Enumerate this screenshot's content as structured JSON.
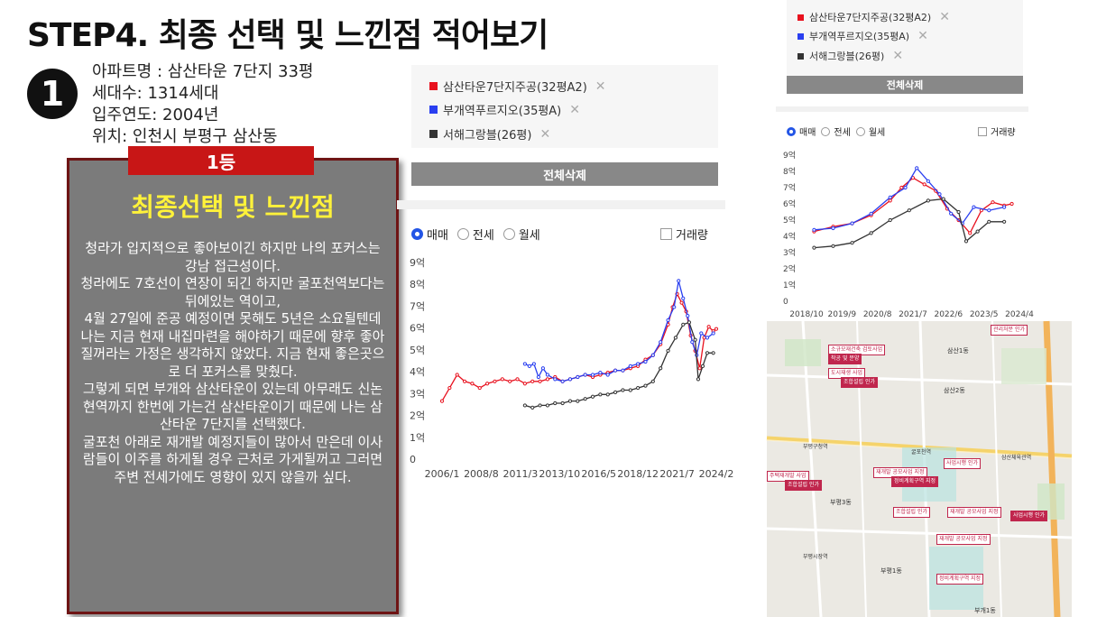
{
  "title": "STEP4. 최종 선택 및 느낀점 적어보기",
  "step_number": "1",
  "info": {
    "name": "아파트명 : 삼산타운 7단지 33평",
    "households": "세대수: 1314세대",
    "year": "입주연도: 2004년",
    "location": "위치: 인천시 부평구 삼산동"
  },
  "card": {
    "rank": "1등",
    "heading": "최종선택 및 느낀점",
    "paragraphs": [
      "청라가 입지적으로 좋아보이긴 하지만 나의 포커스는 강남 접근성이다.",
      "청라에도 7호선이 연장이 되긴 하지만 굴포천역보다는 뒤에있는 역이고,",
      "4월 27일에 준공 예정이면 못해도 5년은 소요될텐데 나는 지금 현재 내집마련을 해야하기 때문에 향후 좋아질꺼라는 가정은 생각하지 않았다. 지금 현재 좋은곳으로 더 포커스를 맞췄다.",
      "그렇게 되면 부개와 삼산타운이 있는데 아무래도 신논현역까지 한번에 가는건 삼산타운이기 때문에 나는 삼산타운 7단지를 선택했다.",
      "굴포천 아래로 재개발 예정지들이 많아서 만은데 이사람들이 이주를 하게될 경우 근처로 가게될꺼고 그러면 주변 전세가에도 영향이 있지 않을까 싶다."
    ]
  },
  "legend": [
    {
      "label": "삼산타운7단지주공(32평A2)",
      "color": "#e8111e"
    },
    {
      "label": "부개역푸르지오(35평A)",
      "color": "#2a3ff0"
    },
    {
      "label": "서해그랑블(26평)",
      "color": "#333333"
    }
  ],
  "clear_all": "전체삭제",
  "trade_types": [
    "매매",
    "전세",
    "월세"
  ],
  "volume_label": "거래량",
  "colors": {
    "red": "#e8111e",
    "blue": "#2a3ff0",
    "black": "#333333",
    "card_bg": "#7b7b7b",
    "rank_bg": "#c81616"
  },
  "chart_data": [
    {
      "type": "line",
      "y_ticks": [
        "9억",
        "8억",
        "7억",
        "6억",
        "5억",
        "4억",
        "3억",
        "2억",
        "1억",
        "0"
      ],
      "x_ticks": [
        "2006/1",
        "2008/8",
        "2011/3",
        "2013/10",
        "2016/5",
        "2018/12",
        "2021/7",
        "2024/2"
      ],
      "ylim": [
        0,
        9
      ],
      "series": [
        {
          "name": "삼산타운7단지주공(32평A2)",
          "color": "#e8111e",
          "points": [
            [
              2006.0,
              2.7
            ],
            [
              2006.5,
              3.3
            ],
            [
              2007.0,
              3.9
            ],
            [
              2007.5,
              3.6
            ],
            [
              2008.0,
              3.5
            ],
            [
              2008.5,
              3.3
            ],
            [
              2009.0,
              3.5
            ],
            [
              2009.5,
              3.6
            ],
            [
              2010.0,
              3.7
            ],
            [
              2010.5,
              3.6
            ],
            [
              2011.0,
              3.7
            ],
            [
              2011.5,
              3.5
            ],
            [
              2012.0,
              3.6
            ],
            [
              2012.5,
              3.6
            ],
            [
              2013.0,
              3.7
            ],
            [
              2013.5,
              3.8
            ],
            [
              2014.0,
              3.6
            ],
            [
              2014.5,
              3.7
            ],
            [
              2015.0,
              3.8
            ],
            [
              2015.5,
              3.9
            ],
            [
              2016.0,
              3.8
            ],
            [
              2016.5,
              3.9
            ],
            [
              2017.0,
              4.0
            ],
            [
              2017.5,
              4.1
            ],
            [
              2018.0,
              4.1
            ],
            [
              2018.5,
              4.2
            ],
            [
              2019.0,
              4.3
            ],
            [
              2019.5,
              4.6
            ],
            [
              2020.0,
              4.8
            ],
            [
              2020.5,
              5.3
            ],
            [
              2021.0,
              6.2
            ],
            [
              2021.3,
              7.0
            ],
            [
              2021.6,
              7.6
            ],
            [
              2021.9,
              7.2
            ],
            [
              2022.2,
              6.8
            ],
            [
              2022.5,
              5.7
            ],
            [
              2022.8,
              5.0
            ],
            [
              2023.1,
              4.2
            ],
            [
              2023.4,
              5.6
            ],
            [
              2023.7,
              6.1
            ],
            [
              2024.0,
              5.9
            ],
            [
              2024.2,
              6.0
            ]
          ]
        },
        {
          "name": "부개역푸르지오(35평A)",
          "color": "#2a3ff0",
          "points": [
            [
              2011.5,
              4.4
            ],
            [
              2011.8,
              4.3
            ],
            [
              2012.1,
              4.4
            ],
            [
              2012.4,
              3.8
            ],
            [
              2012.7,
              4.2
            ],
            [
              2013.0,
              3.9
            ],
            [
              2013.5,
              3.7
            ],
            [
              2014.0,
              3.6
            ],
            [
              2014.5,
              3.7
            ],
            [
              2015.0,
              3.8
            ],
            [
              2015.5,
              3.9
            ],
            [
              2016.0,
              3.9
            ],
            [
              2016.5,
              4.0
            ],
            [
              2017.0,
              3.9
            ],
            [
              2017.5,
              4.1
            ],
            [
              2018.0,
              4.1
            ],
            [
              2018.5,
              4.3
            ],
            [
              2019.0,
              4.4
            ],
            [
              2019.5,
              4.5
            ],
            [
              2020.0,
              4.8
            ],
            [
              2020.5,
              5.4
            ],
            [
              2021.0,
              6.4
            ],
            [
              2021.4,
              7.0
            ],
            [
              2021.7,
              8.2
            ],
            [
              2022.0,
              7.4
            ],
            [
              2022.3,
              6.6
            ],
            [
              2022.6,
              5.4
            ],
            [
              2022.9,
              4.8
            ],
            [
              2023.2,
              5.8
            ],
            [
              2023.6,
              5.6
            ],
            [
              2024.0,
              5.8
            ]
          ]
        },
        {
          "name": "서해그랑블(26평)",
          "color": "#333333",
          "points": [
            [
              2011.5,
              2.5
            ],
            [
              2012.0,
              2.4
            ],
            [
              2012.5,
              2.5
            ],
            [
              2013.0,
              2.5
            ],
            [
              2013.5,
              2.6
            ],
            [
              2014.0,
              2.6
            ],
            [
              2014.5,
              2.7
            ],
            [
              2015.0,
              2.7
            ],
            [
              2015.5,
              2.8
            ],
            [
              2016.0,
              2.9
            ],
            [
              2016.5,
              3.0
            ],
            [
              2017.0,
              3.0
            ],
            [
              2017.5,
              3.1
            ],
            [
              2018.0,
              3.2
            ],
            [
              2018.5,
              3.2
            ],
            [
              2019.0,
              3.3
            ],
            [
              2019.5,
              3.4
            ],
            [
              2020.0,
              3.6
            ],
            [
              2020.5,
              4.2
            ],
            [
              2021.0,
              5.0
            ],
            [
              2021.5,
              5.6
            ],
            [
              2022.0,
              6.2
            ],
            [
              2022.4,
              6.3
            ],
            [
              2022.8,
              5.5
            ],
            [
              2023.0,
              3.7
            ],
            [
              2023.3,
              4.3
            ],
            [
              2023.6,
              4.9
            ],
            [
              2024.0,
              4.9
            ]
          ]
        }
      ]
    },
    {
      "type": "line",
      "y_ticks": [
        "9억",
        "8억",
        "7억",
        "6억",
        "5억",
        "4억",
        "3억",
        "2억",
        "1억",
        "0"
      ],
      "x_ticks": [
        "2018/10",
        "2019/9",
        "2020/8",
        "2021/7",
        "2022/6",
        "2023/5",
        "2024/4"
      ],
      "ylim": [
        0,
        9
      ]
    }
  ],
  "map": {
    "tags": [
      "소규모재건축 검토사업",
      "도시재생 사업",
      "주택재개발 사업",
      "부평구청역",
      "굴포천역",
      "재개발 공모사업 지정",
      "조합설립 인가",
      "정비계획구역 지정",
      "사업시행 인가",
      "관리처분 인가",
      "착공 및 분양"
    ],
    "labels": [
      "부평구청역",
      "굴포천역",
      "삼산체육관역",
      "부평시장역",
      "부평1동",
      "부평3동",
      "삼산1동",
      "삼산2동",
      "부개1동",
      "부개3동"
    ]
  }
}
